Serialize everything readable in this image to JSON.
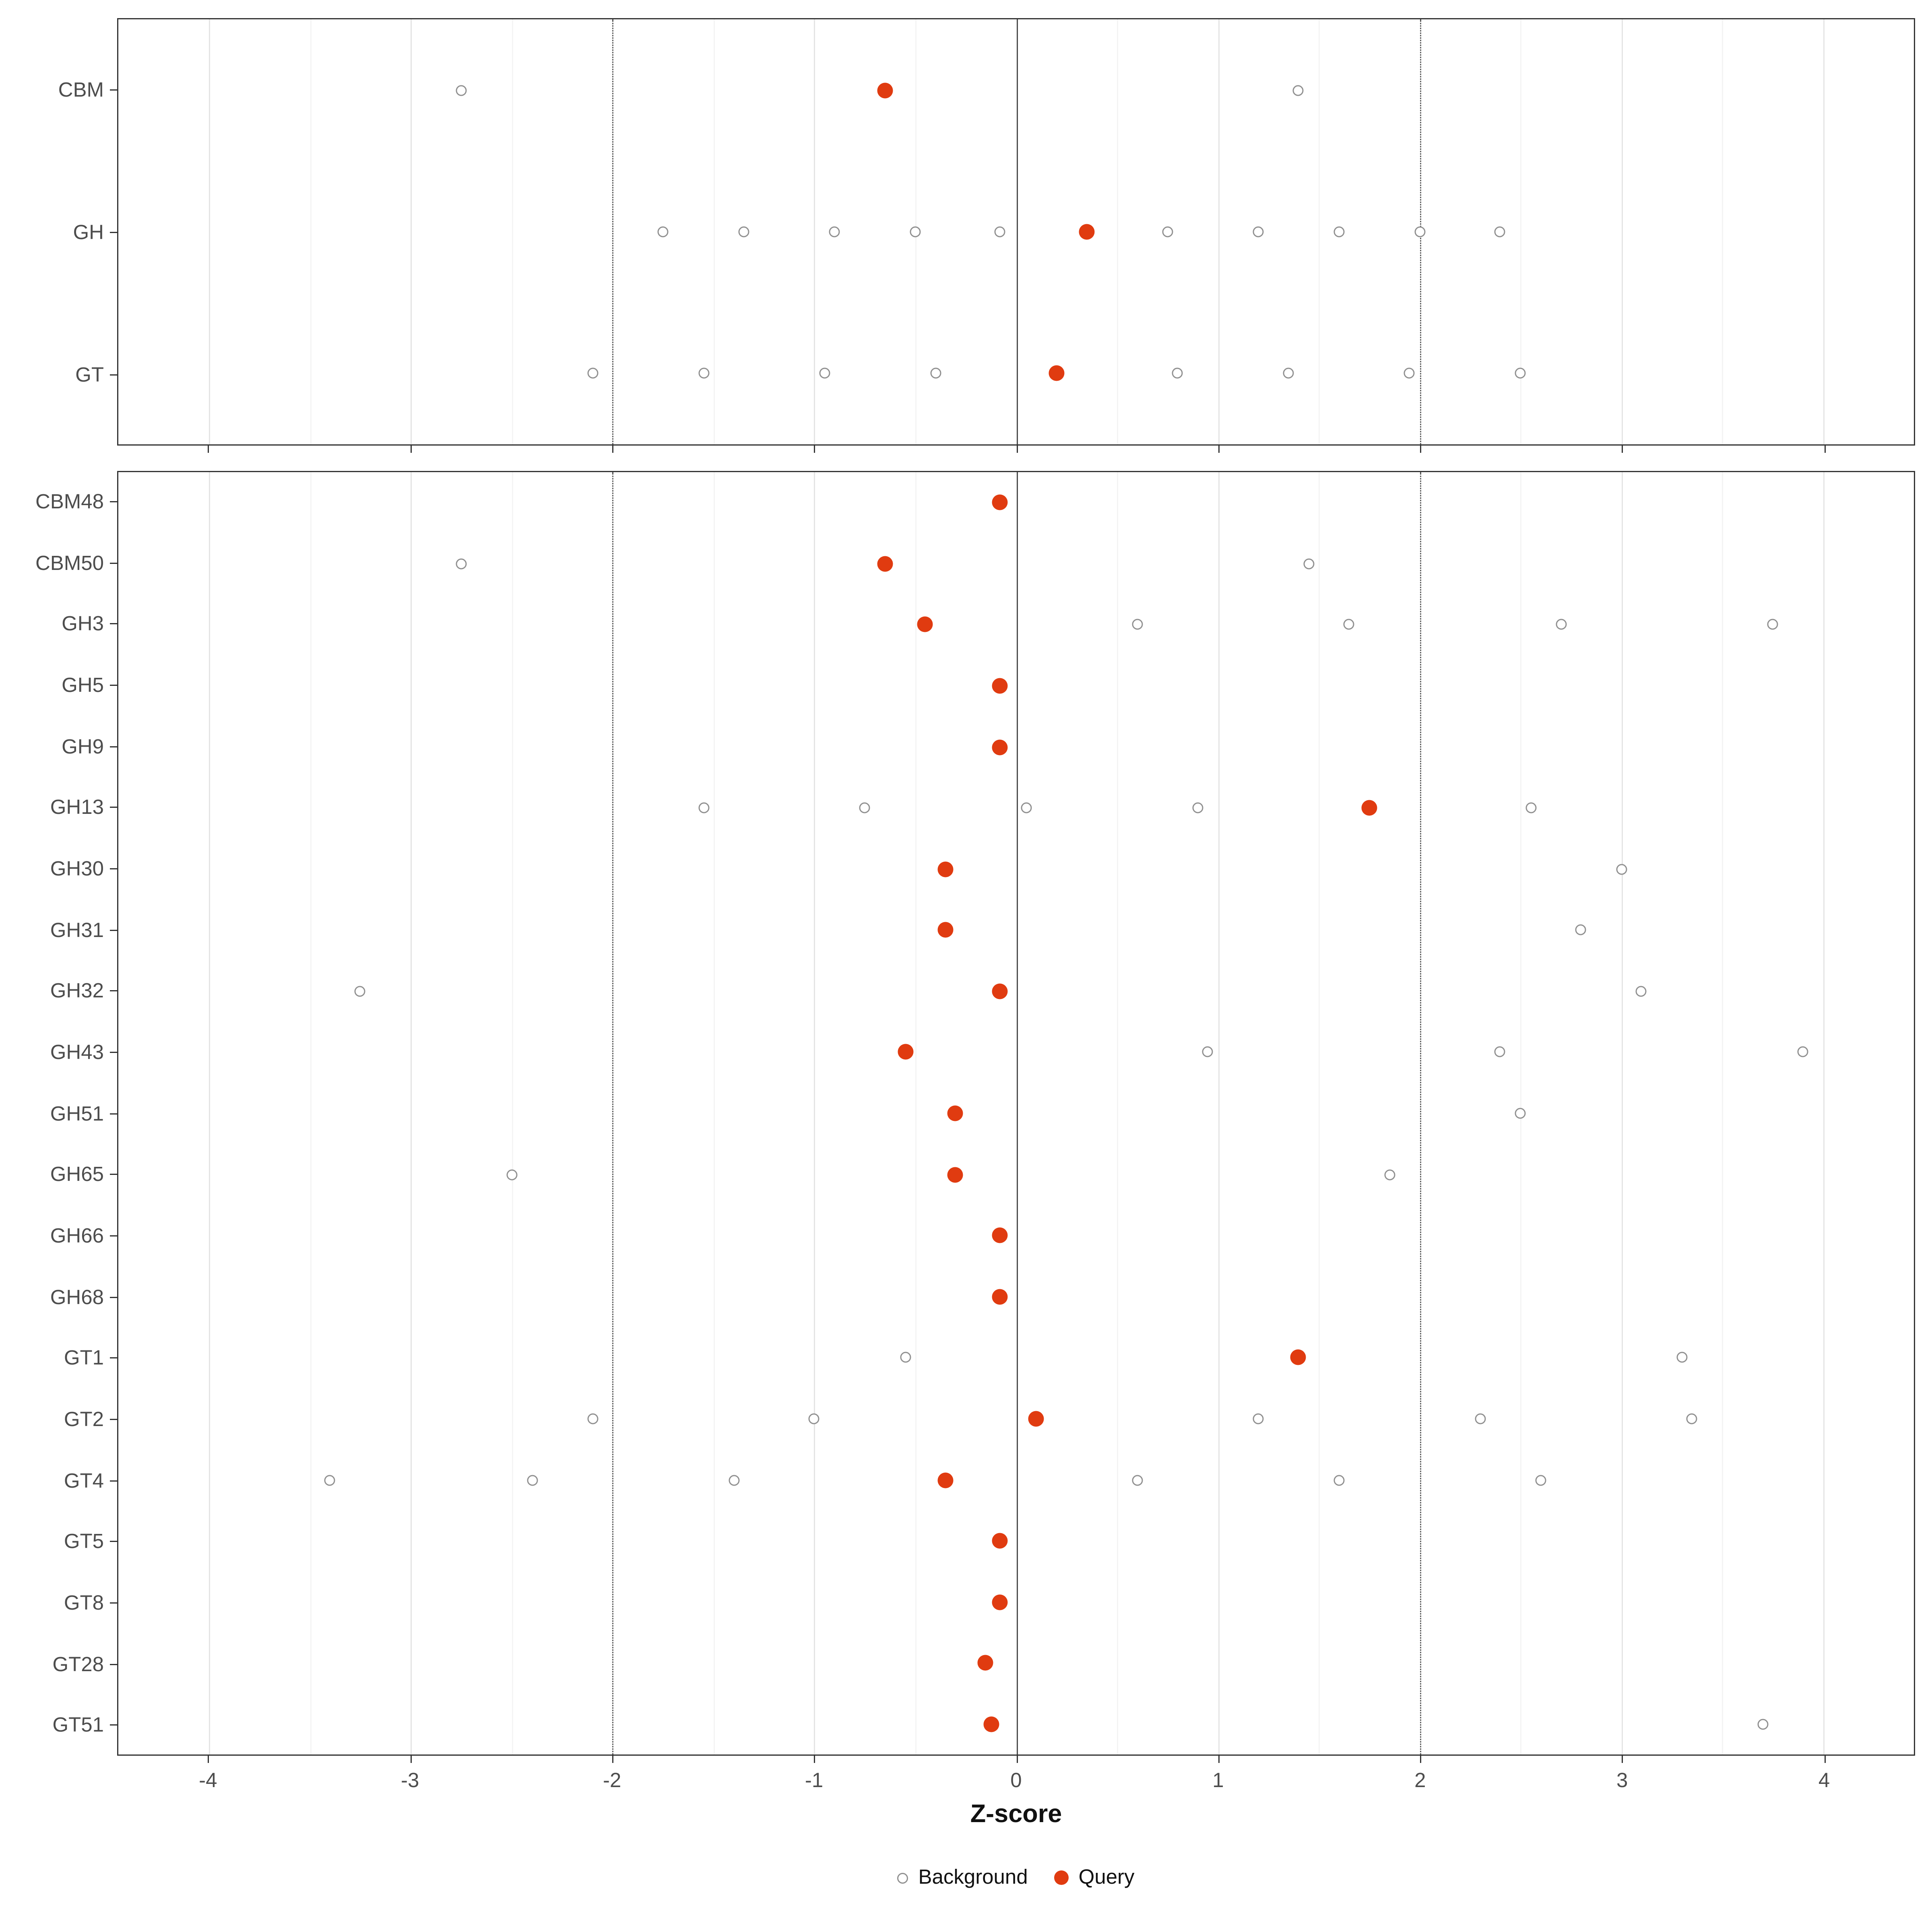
{
  "chart_data": {
    "type": "scatter",
    "title": "",
    "xlabel": "Z-score",
    "ylabel": "",
    "x_ticks": [
      -4,
      -3,
      -2,
      -1,
      0,
      1,
      2,
      3,
      4
    ],
    "xlim": [
      -4.45,
      4.45
    ],
    "grid": true,
    "reference_lines": {
      "solid": [
        0
      ],
      "dotted": [
        -2,
        2
      ]
    },
    "legend_position": "bottom",
    "legend": [
      {
        "label": "Background",
        "marker": "open"
      },
      {
        "label": "Query",
        "marker": "filled"
      }
    ],
    "colors": {
      "query": "#e03b10",
      "background_stroke": "#909090",
      "grid_major": "#e4e4e4",
      "grid_minor": "#f4f4f4",
      "axis_text": "#4d4d4d"
    },
    "panels": [
      {
        "name": "class-summary",
        "rows": [
          {
            "category": "CBM",
            "background": [
              -2.75,
              1.4
            ],
            "query": -0.65
          },
          {
            "category": "GH",
            "background": [
              -1.75,
              -1.35,
              -0.9,
              -0.5,
              -0.08,
              0.75,
              1.2,
              1.6,
              2.0,
              2.4
            ],
            "query": 0.35
          },
          {
            "category": "GT",
            "background": [
              -2.1,
              -1.55,
              -0.95,
              -0.4,
              0.8,
              1.35,
              1.95,
              2.5
            ],
            "query": 0.2
          }
        ]
      },
      {
        "name": "family-detail",
        "rows": [
          {
            "category": "CBM48",
            "background": [],
            "query": -0.08
          },
          {
            "category": "CBM50",
            "background": [
              -2.75,
              1.45
            ],
            "query": -0.65
          },
          {
            "category": "GH3",
            "background": [
              0.6,
              1.65,
              2.7,
              3.75
            ],
            "query": -0.45
          },
          {
            "category": "GH5",
            "background": [],
            "query": -0.08
          },
          {
            "category": "GH9",
            "background": [],
            "query": -0.08
          },
          {
            "category": "GH13",
            "background": [
              -1.55,
              -0.75,
              0.05,
              0.9,
              2.55
            ],
            "query": 1.75
          },
          {
            "category": "GH30",
            "background": [
              3.0
            ],
            "query": -0.35
          },
          {
            "category": "GH31",
            "background": [
              2.8
            ],
            "query": -0.35
          },
          {
            "category": "GH32",
            "background": [
              -3.25,
              3.1
            ],
            "query": -0.08
          },
          {
            "category": "GH43",
            "background": [
              0.95,
              2.4,
              3.9
            ],
            "query": -0.55
          },
          {
            "category": "GH51",
            "background": [
              2.5
            ],
            "query": -0.3
          },
          {
            "category": "GH65",
            "background": [
              -2.5,
              1.85
            ],
            "query": -0.3
          },
          {
            "category": "GH66",
            "background": [],
            "query": -0.08
          },
          {
            "category": "GH68",
            "background": [],
            "query": -0.08
          },
          {
            "category": "GT1",
            "background": [
              -0.55,
              3.3
            ],
            "query": 1.4
          },
          {
            "category": "GT2",
            "background": [
              -2.1,
              -1.0,
              1.2,
              2.3,
              3.35
            ],
            "query": 0.1
          },
          {
            "category": "GT4",
            "background": [
              -3.4,
              -2.4,
              -1.4,
              0.6,
              1.6,
              2.6
            ],
            "query": -0.35
          },
          {
            "category": "GT5",
            "background": [],
            "query": -0.08
          },
          {
            "category": "GT8",
            "background": [],
            "query": -0.08
          },
          {
            "category": "GT28",
            "background": [],
            "query": -0.15
          },
          {
            "category": "GT51",
            "background": [
              3.7
            ],
            "query": -0.12
          }
        ]
      }
    ]
  }
}
